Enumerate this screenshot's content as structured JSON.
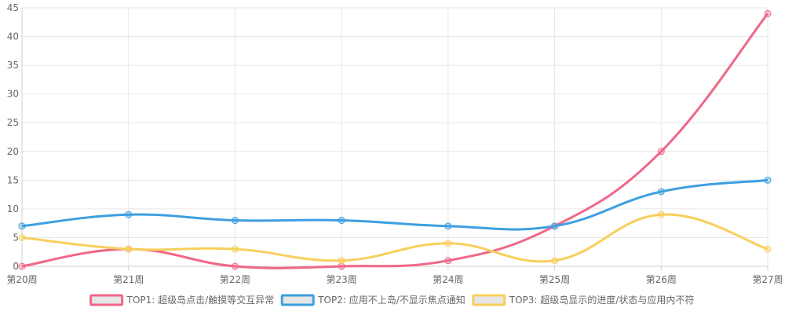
{
  "chart_data": {
    "type": "line",
    "title": "",
    "xlabel": "",
    "ylabel": "",
    "categories": [
      "第20周",
      "第21周",
      "第22周",
      "第23周",
      "第24周",
      "第25周",
      "第26周",
      "第27周"
    ],
    "ylim": [
      0,
      45
    ],
    "yticks": [
      0,
      5,
      10,
      15,
      20,
      25,
      30,
      35,
      40,
      45
    ],
    "grid": true,
    "legend_position": "bottom",
    "smooth": true,
    "series": [
      {
        "name": "TOP1: 超级岛点击/触摸等交互异常",
        "color": "#f06788",
        "values": [
          0,
          3,
          0,
          0,
          1,
          7,
          20,
          44
        ]
      },
      {
        "name": "TOP2: 应用不上岛/不显示焦点通知",
        "color": "#3d9fe0",
        "values": [
          7,
          9,
          8,
          8,
          7,
          7,
          13,
          15
        ]
      },
      {
        "name": "TOP3: 超级岛显示的进度/状态与应用内不符",
        "color": "#f8cf5c",
        "values": [
          5,
          3,
          3,
          1,
          4,
          1,
          9,
          3
        ]
      }
    ]
  }
}
